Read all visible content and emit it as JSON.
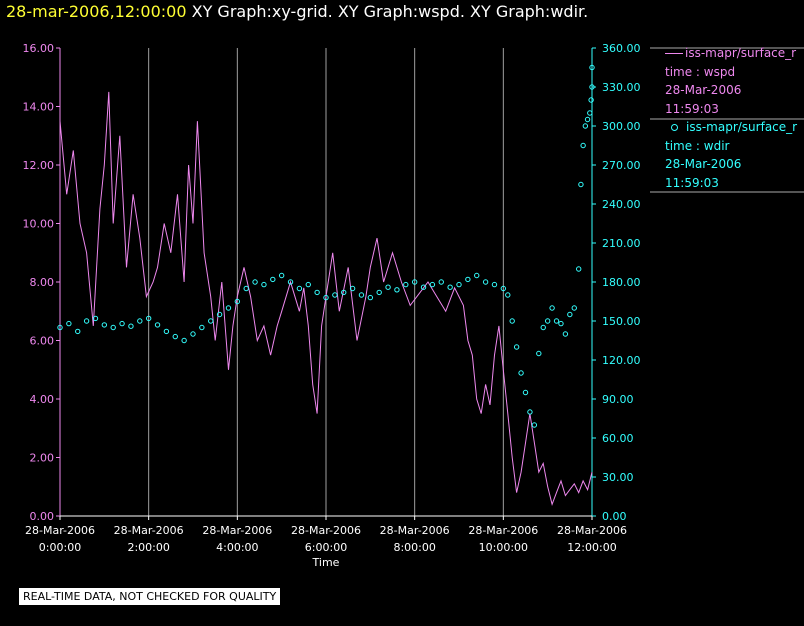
{
  "header": {
    "timestamp": "28-mar-2006,12:00:00",
    "graphs": "XY Graph:xy-grid.  XY Graph:wspd.  XY Graph:wdir."
  },
  "footer": {
    "notice": "REAL-TIME DATA, NOT CHECKED FOR QUALITY"
  },
  "legend": {
    "wspd": {
      "name": "iss-mapr/surface_r",
      "var": "time : wspd",
      "date": "28-Mar-2006",
      "time": "11:59:03",
      "color": "#ee88ee"
    },
    "wdir": {
      "name": "iss-mapr/surface_r",
      "var": "time : wdir",
      "date": "28-Mar-2006",
      "time": "11:59:03",
      "color": "#33ffff"
    }
  },
  "chart_data": {
    "type": "line+scatter",
    "xlabel": "Time",
    "xlim_hours": [
      0,
      12
    ],
    "x_ticks": [
      {
        "h": 0,
        "date": "28-Mar-2006",
        "time": "0:00:00"
      },
      {
        "h": 2,
        "date": "28-Mar-2006",
        "time": "2:00:00"
      },
      {
        "h": 4,
        "date": "28-Mar-2006",
        "time": "4:00:00"
      },
      {
        "h": 6,
        "date": "28-Mar-2006",
        "time": "6:00:00"
      },
      {
        "h": 8,
        "date": "28-Mar-2006",
        "time": "8:00:00"
      },
      {
        "h": 10,
        "date": "28-Mar-2006",
        "time": "10:00:00"
      },
      {
        "h": 12,
        "date": "28-Mar-2006",
        "time": "12:00:00"
      }
    ],
    "y_left": {
      "label": "wspd",
      "ylim": [
        0,
        16
      ],
      "ticks": [
        "0.00",
        "2.00",
        "4.00",
        "6.00",
        "8.00",
        "10.00",
        "12.00",
        "14.00",
        "16.00"
      ],
      "color": "#ee88ee"
    },
    "y_right": {
      "label": "wdir",
      "ylim": [
        0,
        360
      ],
      "ticks": [
        "0.00",
        "30.00",
        "60.00",
        "90.00",
        "120.00",
        "150.00",
        "180.00",
        "210.00",
        "240.00",
        "270.00",
        "300.00",
        "330.00",
        "360.00"
      ],
      "color": "#33ffff"
    },
    "grid": "vertical lines at major x ticks",
    "series": [
      {
        "name": "wspd",
        "style": "line",
        "color": "#ee88ee",
        "points": [
          [
            0.0,
            13.5
          ],
          [
            0.15,
            11.0
          ],
          [
            0.3,
            12.5
          ],
          [
            0.45,
            10.0
          ],
          [
            0.6,
            9.0
          ],
          [
            0.75,
            6.5
          ],
          [
            0.9,
            10.5
          ],
          [
            1.0,
            12.0
          ],
          [
            1.1,
            14.5
          ],
          [
            1.2,
            10.0
          ],
          [
            1.35,
            13.0
          ],
          [
            1.5,
            8.5
          ],
          [
            1.65,
            11.0
          ],
          [
            1.8,
            9.5
          ],
          [
            1.95,
            7.5
          ],
          [
            2.1,
            8.0
          ],
          [
            2.2,
            8.5
          ],
          [
            2.35,
            10.0
          ],
          [
            2.5,
            9.0
          ],
          [
            2.65,
            11.0
          ],
          [
            2.8,
            8.0
          ],
          [
            2.9,
            12.0
          ],
          [
            3.0,
            10.0
          ],
          [
            3.1,
            13.5
          ],
          [
            3.25,
            9.0
          ],
          [
            3.4,
            7.5
          ],
          [
            3.5,
            6.0
          ],
          [
            3.65,
            8.0
          ],
          [
            3.8,
            5.0
          ],
          [
            3.9,
            6.5
          ],
          [
            4.0,
            7.5
          ],
          [
            4.15,
            8.5
          ],
          [
            4.3,
            7.5
          ],
          [
            4.45,
            6.0
          ],
          [
            4.6,
            6.5
          ],
          [
            4.75,
            5.5
          ],
          [
            4.9,
            6.5
          ],
          [
            5.0,
            7.0
          ],
          [
            5.2,
            8.0
          ],
          [
            5.4,
            7.0
          ],
          [
            5.5,
            7.8
          ],
          [
            5.6,
            6.5
          ],
          [
            5.7,
            4.5
          ],
          [
            5.8,
            3.5
          ],
          [
            5.9,
            6.5
          ],
          [
            6.0,
            7.5
          ],
          [
            6.15,
            9.0
          ],
          [
            6.3,
            7.0
          ],
          [
            6.5,
            8.5
          ],
          [
            6.7,
            6.0
          ],
          [
            6.9,
            7.5
          ],
          [
            7.0,
            8.5
          ],
          [
            7.15,
            9.5
          ],
          [
            7.3,
            8.0
          ],
          [
            7.5,
            9.0
          ],
          [
            7.7,
            8.0
          ],
          [
            7.9,
            7.2
          ],
          [
            8.1,
            7.6
          ],
          [
            8.3,
            8.0
          ],
          [
            8.5,
            7.5
          ],
          [
            8.7,
            7.0
          ],
          [
            8.9,
            7.8
          ],
          [
            9.1,
            7.2
          ],
          [
            9.2,
            6.0
          ],
          [
            9.3,
            5.5
          ],
          [
            9.4,
            4.0
          ],
          [
            9.5,
            3.5
          ],
          [
            9.6,
            4.5
          ],
          [
            9.7,
            3.8
          ],
          [
            9.8,
            5.5
          ],
          [
            9.9,
            6.5
          ],
          [
            10.0,
            5.0
          ],
          [
            10.1,
            3.5
          ],
          [
            10.2,
            2.0
          ],
          [
            10.3,
            0.8
          ],
          [
            10.4,
            1.5
          ],
          [
            10.5,
            2.5
          ],
          [
            10.6,
            3.5
          ],
          [
            10.7,
            2.5
          ],
          [
            10.8,
            1.5
          ],
          [
            10.9,
            1.8
          ],
          [
            11.0,
            1.0
          ],
          [
            11.1,
            0.4
          ],
          [
            11.2,
            0.8
          ],
          [
            11.3,
            1.2
          ],
          [
            11.4,
            0.7
          ],
          [
            11.5,
            0.9
          ],
          [
            11.6,
            1.1
          ],
          [
            11.7,
            0.8
          ],
          [
            11.8,
            1.2
          ],
          [
            11.9,
            0.9
          ],
          [
            12.0,
            1.5
          ]
        ]
      },
      {
        "name": "wdir",
        "style": "scatter",
        "color": "#33ffff",
        "points": [
          [
            0.0,
            145
          ],
          [
            0.2,
            148
          ],
          [
            0.4,
            142
          ],
          [
            0.6,
            150
          ],
          [
            0.8,
            152
          ],
          [
            1.0,
            147
          ],
          [
            1.2,
            145
          ],
          [
            1.4,
            148
          ],
          [
            1.6,
            146
          ],
          [
            1.8,
            150
          ],
          [
            2.0,
            152
          ],
          [
            2.2,
            147
          ],
          [
            2.4,
            142
          ],
          [
            2.6,
            138
          ],
          [
            2.8,
            135
          ],
          [
            3.0,
            140
          ],
          [
            3.2,
            145
          ],
          [
            3.4,
            150
          ],
          [
            3.6,
            155
          ],
          [
            3.8,
            160
          ],
          [
            4.0,
            165
          ],
          [
            4.2,
            175
          ],
          [
            4.4,
            180
          ],
          [
            4.6,
            178
          ],
          [
            4.8,
            182
          ],
          [
            5.0,
            185
          ],
          [
            5.2,
            180
          ],
          [
            5.4,
            175
          ],
          [
            5.6,
            178
          ],
          [
            5.8,
            172
          ],
          [
            6.0,
            168
          ],
          [
            6.2,
            170
          ],
          [
            6.4,
            172
          ],
          [
            6.6,
            175
          ],
          [
            6.8,
            170
          ],
          [
            7.0,
            168
          ],
          [
            7.2,
            172
          ],
          [
            7.4,
            176
          ],
          [
            7.6,
            174
          ],
          [
            7.8,
            178
          ],
          [
            8.0,
            180
          ],
          [
            8.2,
            176
          ],
          [
            8.4,
            178
          ],
          [
            8.6,
            180
          ],
          [
            8.8,
            176
          ],
          [
            9.0,
            178
          ],
          [
            9.2,
            182
          ],
          [
            9.4,
            185
          ],
          [
            9.6,
            180
          ],
          [
            9.8,
            178
          ],
          [
            10.0,
            175
          ],
          [
            10.1,
            170
          ],
          [
            10.2,
            150
          ],
          [
            10.3,
            130
          ],
          [
            10.4,
            110
          ],
          [
            10.5,
            95
          ],
          [
            10.6,
            80
          ],
          [
            10.7,
            70
          ],
          [
            10.8,
            125
          ],
          [
            10.9,
            145
          ],
          [
            11.0,
            150
          ],
          [
            11.1,
            160
          ],
          [
            11.2,
            150
          ],
          [
            11.3,
            148
          ],
          [
            11.4,
            140
          ],
          [
            11.5,
            155
          ],
          [
            11.6,
            160
          ],
          [
            11.7,
            190
          ],
          [
            11.75,
            255
          ],
          [
            11.8,
            285
          ],
          [
            11.85,
            300
          ],
          [
            11.9,
            305
          ],
          [
            11.95,
            310
          ],
          [
            11.98,
            320
          ],
          [
            12.0,
            330
          ],
          [
            12.0,
            345
          ]
        ]
      }
    ]
  }
}
